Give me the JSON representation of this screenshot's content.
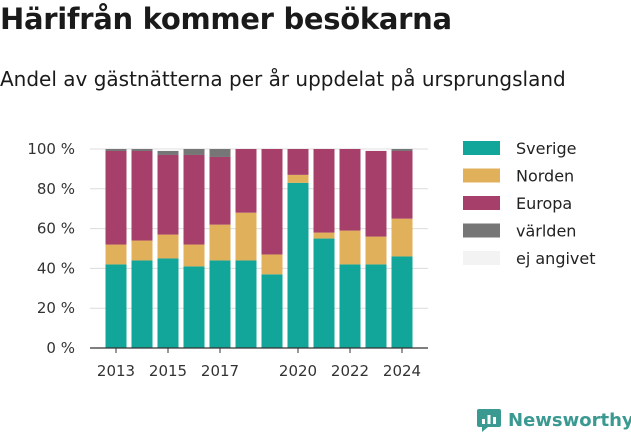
{
  "header": {
    "title": "Härifrån kommer besökarna",
    "subtitle": "Andel av gästnätterna per år uppdelat på ursprungsland"
  },
  "brand": {
    "name": "Newsworthy",
    "icon": "newsworthy-logo-icon"
  },
  "chart_data": {
    "type": "bar",
    "stacked": true,
    "x": [
      2013,
      2014,
      2015,
      2016,
      2017,
      2018,
      2019,
      2020,
      2021,
      2022,
      2023,
      2024
    ],
    "x_ticks": [
      "2013",
      "2015",
      "2017",
      "2020",
      "2022",
      "2024"
    ],
    "y_ticks": [
      "0 %",
      "20 %",
      "40 %",
      "60 %",
      "80 %",
      "100 %"
    ],
    "ylim": [
      0,
      100
    ],
    "grid": true,
    "legend_position": "right",
    "series": [
      {
        "name": "Sverige",
        "color": "#12a59a",
        "values": [
          42,
          44,
          45,
          41,
          44,
          44,
          37,
          83,
          55,
          42,
          42,
          46
        ]
      },
      {
        "name": "Norden",
        "color": "#e0b05a",
        "values": [
          10,
          10,
          12,
          11,
          18,
          24,
          10,
          4,
          3,
          17,
          14,
          19
        ]
      },
      {
        "name": "Europa",
        "color": "#a6406b",
        "values": [
          47,
          45,
          40,
          45,
          34,
          32,
          53,
          13,
          42,
          41,
          43,
          34
        ]
      },
      {
        "name": "världen",
        "color": "#767676",
        "values": [
          1,
          1,
          2,
          3,
          4,
          0,
          0,
          0,
          0,
          0,
          0,
          1
        ]
      },
      {
        "name": "ej angivet",
        "color": "#f3f3f3",
        "values": [
          0,
          0,
          1,
          0,
          0,
          0,
          0,
          0,
          0,
          0,
          1,
          0
        ]
      }
    ]
  }
}
